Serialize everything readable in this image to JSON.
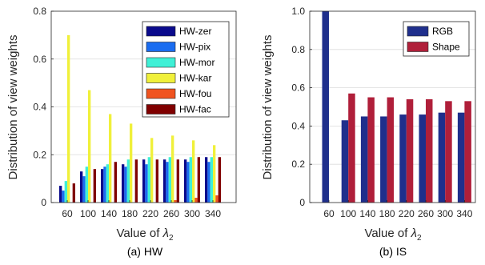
{
  "chart_data": [
    {
      "type": "bar",
      "caption": "(a) HW",
      "xlabel_prefix": "Value of ",
      "xlabel_symbol": "λ",
      "xlabel_sub": "2",
      "ylabel": "Distribution of view weights",
      "categories": [
        "60",
        "100",
        "140",
        "180",
        "220",
        "260",
        "300",
        "340"
      ],
      "ylim": [
        0,
        0.8
      ],
      "yticks": [
        "0",
        "0.2",
        "0.4",
        "0.6",
        "0.8"
      ],
      "grid": true,
      "legend_position": "top-right",
      "series": [
        {
          "name": "HW-zer",
          "color": "#0a0a8c",
          "values": [
            0.07,
            0.13,
            0.14,
            0.16,
            0.18,
            0.18,
            0.18,
            0.19
          ]
        },
        {
          "name": "HW-pix",
          "color": "#1a6cf0",
          "values": [
            0.05,
            0.11,
            0.15,
            0.15,
            0.16,
            0.17,
            0.17,
            0.17
          ]
        },
        {
          "name": "HW-mor",
          "color": "#3ff0d6",
          "values": [
            0.09,
            0.15,
            0.16,
            0.18,
            0.19,
            0.19,
            0.19,
            0.19
          ]
        },
        {
          "name": "HW-kar",
          "color": "#f0f03a",
          "values": [
            0.7,
            0.47,
            0.37,
            0.33,
            0.27,
            0.28,
            0.26,
            0.24
          ]
        },
        {
          "name": "HW-fou",
          "color": "#f0531f",
          "values": [
            0.0,
            0.0,
            0.0,
            0.0,
            0.0,
            0.01,
            0.02,
            0.03
          ]
        },
        {
          "name": "HW-fac",
          "color": "#800000",
          "values": [
            0.08,
            0.14,
            0.17,
            0.18,
            0.18,
            0.18,
            0.19,
            0.19
          ]
        }
      ]
    },
    {
      "type": "bar",
      "caption": "(b) IS",
      "xlabel_prefix": "Value of ",
      "xlabel_symbol": "λ",
      "xlabel_sub": "2",
      "ylabel": "Distribution of view weights",
      "categories": [
        "60",
        "100",
        "140",
        "180",
        "220",
        "260",
        "300",
        "340"
      ],
      "ylim": [
        0,
        1.0
      ],
      "yticks": [
        "0",
        "0.2",
        "0.4",
        "0.6",
        "0.8",
        "1.0"
      ],
      "grid": true,
      "legend_position": "top-right",
      "series": [
        {
          "name": "RGB",
          "color": "#1f2f8c",
          "values": [
            1.0,
            0.43,
            0.45,
            0.45,
            0.46,
            0.46,
            0.47,
            0.47
          ]
        },
        {
          "name": "Shape",
          "color": "#b01f3a",
          "values": [
            0.0,
            0.57,
            0.55,
            0.55,
            0.54,
            0.54,
            0.53,
            0.53
          ]
        }
      ]
    }
  ]
}
